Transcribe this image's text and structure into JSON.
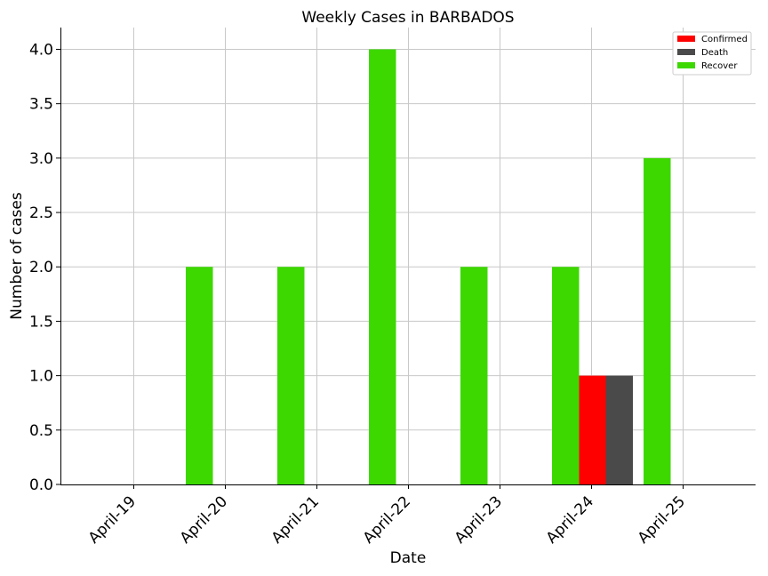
{
  "chart_data": {
    "type": "bar",
    "title": "Weekly Cases in BARBADOS",
    "xlabel": "Date",
    "ylabel": "Number of cases",
    "categories": [
      "April-19",
      "April-20",
      "April-21",
      "April-22",
      "April-23",
      "April-24",
      "April-25"
    ],
    "series": [
      {
        "name": "Confirmed",
        "color": "#ff0000",
        "values": [
          0,
          0,
          0,
          0,
          0,
          1,
          0
        ]
      },
      {
        "name": "Death",
        "color": "#4a4a4a",
        "values": [
          0,
          0,
          0,
          0,
          0,
          1,
          0
        ]
      },
      {
        "name": "Recover",
        "color": "#3cd800",
        "values": [
          0,
          2,
          2,
          4,
          2,
          2,
          3
        ]
      }
    ],
    "ylim": [
      0,
      4.2
    ],
    "yticks": [
      "0.0",
      "0.5",
      "1.0",
      "1.5",
      "2.0",
      "2.5",
      "3.0",
      "3.5",
      "4.0"
    ],
    "grid": true,
    "legend_position": "top-right"
  }
}
